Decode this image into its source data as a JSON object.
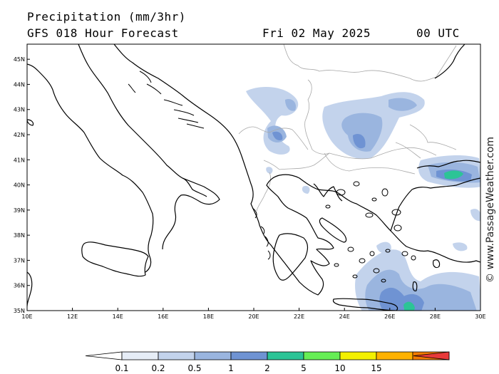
{
  "header": {
    "title": "Precipitation (mm/3hr)",
    "subtitle": "GFS 018 Hour Forecast",
    "date": "Fri 02 May 2025",
    "time": "00 UTC"
  },
  "watermark": "© www.PassageWeather.com",
  "map": {
    "lon_range": [
      10,
      30
    ],
    "lat_range": [
      35,
      45.6
    ],
    "lon_ticks": [
      "10E",
      "12E",
      "14E",
      "16E",
      "18E",
      "20E",
      "22E",
      "24E",
      "26E",
      "28E",
      "30E"
    ],
    "lat_ticks": [
      "35N",
      "36N",
      "37N",
      "38N",
      "39N",
      "40N",
      "41N",
      "42N",
      "43N",
      "44N",
      "45N"
    ]
  },
  "legend": {
    "labels": [
      "0.1",
      "0.2",
      "0.5",
      "1",
      "2",
      "5",
      "10",
      "15"
    ],
    "colors": [
      "#ffffff",
      "#e6edf7",
      "#c3d3ec",
      "#9ab5df",
      "#6f93d3",
      "#2cc496",
      "#66ee55",
      "#f3f000",
      "#ffb200",
      "#f27a00",
      "#e83a3a"
    ]
  },
  "precip_colors": {
    "light": "#c3d3ec",
    "medium": "#9ab5df",
    "heavy": "#6f93d3",
    "green": "#2cc496"
  }
}
